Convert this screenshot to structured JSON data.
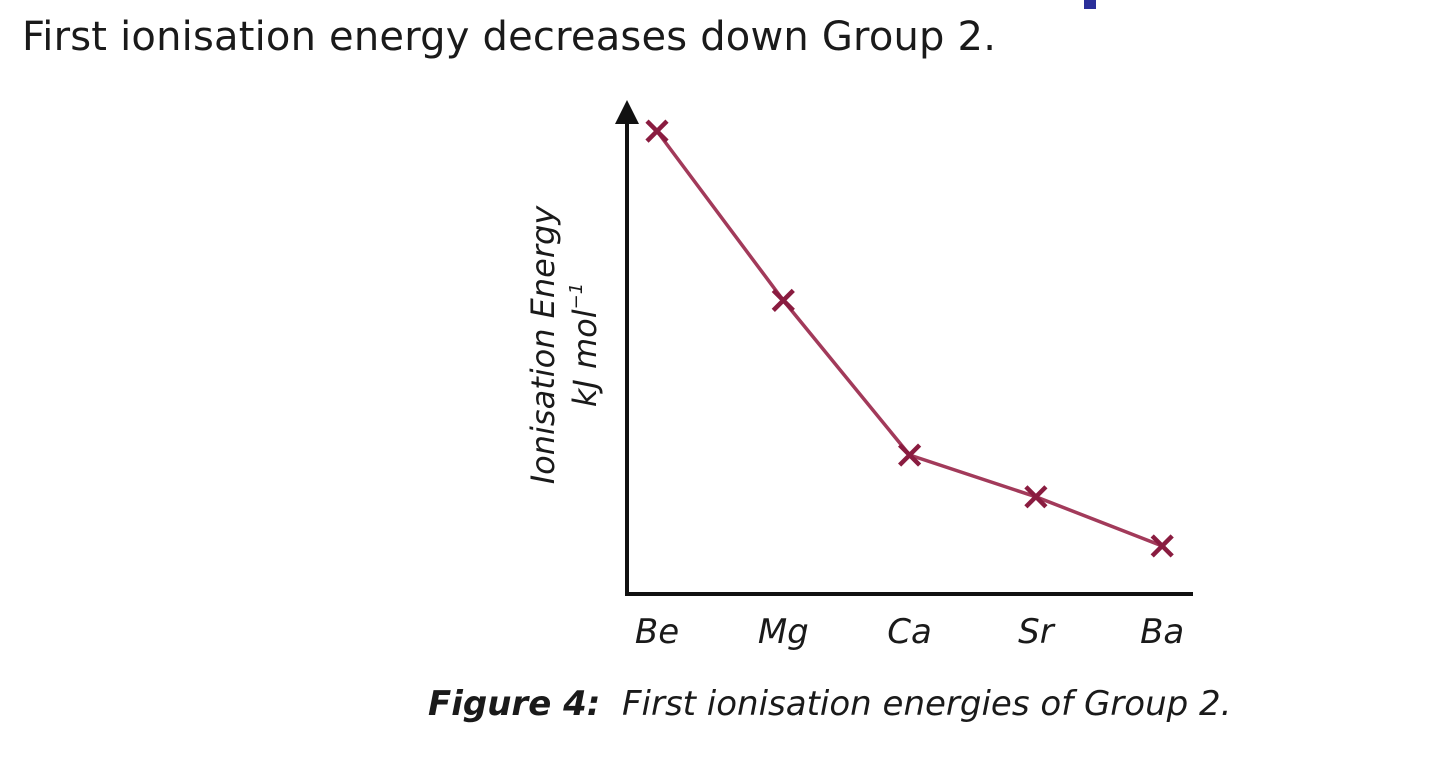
{
  "heading": "First ionisation energy decreases down Group 2.",
  "colors": {
    "line": "#a23a5a",
    "marker": "#8a1c40",
    "axis": "#111111",
    "accent_fragment": "#2a2f9a"
  },
  "chart_data": {
    "type": "line",
    "categories": [
      "Be",
      "Mg",
      "Ca",
      "Sr",
      "Ba"
    ],
    "values": [
      900,
      738,
      590,
      550,
      503
    ],
    "ylabel": "Ionisation Energy",
    "yunit": "kJ mol",
    "yunit_sup": "−1",
    "ylim": [
      457,
      925
    ],
    "y_ticks_shown": false,
    "grid": false,
    "marker": "x",
    "legend": "none"
  },
  "caption": {
    "label": "Figure 4:",
    "text": "First ionisation energies of Group 2."
  }
}
